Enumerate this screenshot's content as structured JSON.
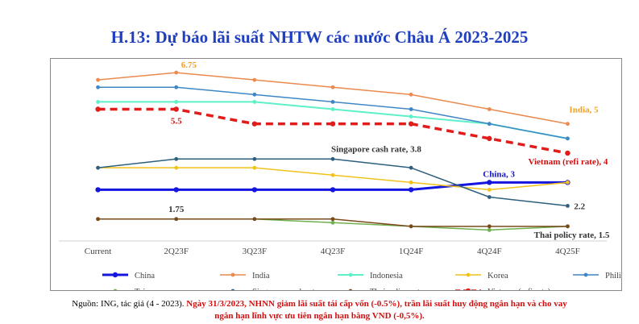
{
  "title": "H.13: Dự báo lãi suất NHTW các nước Châu Á 2023-2025",
  "source": {
    "prefix": "Nguồn: ING, tác giả (4 - 2023). ",
    "note_line1": "Ngày 31/3/2023, NHNN giảm lãi suất tái cấp vốn (-0.5%), trần lãi suất huy động ngắn hạn và cho vay",
    "note_line2": "ngắn hạn lĩnh vực ưu tiên ngắn hạn bằng VND (-0,5%)."
  },
  "chart_data": {
    "type": "line",
    "title": "H.13: Dự báo lãi suất NHTW các nước Châu Á 2023-2025",
    "categories": [
      "Current",
      "2Q23F",
      "3Q23F",
      "4Q23F",
      "1Q24F",
      "4Q24F",
      "4Q25F"
    ],
    "ylim": [
      1,
      7
    ],
    "yticks": [
      "1",
      "2",
      "3",
      "4",
      "5",
      "6",
      "7"
    ],
    "grid": false,
    "legend": "bottom",
    "series": [
      {
        "name": "China",
        "color": "#1515e0",
        "dash": false,
        "width": 3,
        "marker": "circle",
        "values": [
          2.75,
          2.75,
          2.75,
          2.75,
          2.75,
          3.0,
          3.0
        ]
      },
      {
        "name": "India",
        "color": "#ea8a4e",
        "dash": false,
        "width": 1.5,
        "marker": "circle",
        "values": [
          6.5,
          6.75,
          6.5,
          6.25,
          6.0,
          5.5,
          5.0
        ]
      },
      {
        "name": "Indonesia",
        "color": "#5ef0c8",
        "dash": false,
        "width": 2,
        "marker": "circle",
        "values": [
          5.75,
          5.75,
          5.75,
          5.5,
          5.25,
          5.0,
          4.5
        ]
      },
      {
        "name": "Korea",
        "color": "#f2c21a",
        "dash": false,
        "width": 1.5,
        "marker": "circle",
        "values": [
          3.5,
          3.5,
          3.5,
          3.25,
          3.0,
          2.75,
          3.0
        ]
      },
      {
        "name": "Philippines",
        "color": "#3f86c6",
        "dash": false,
        "width": 1.5,
        "marker": "circle",
        "values": [
          6.25,
          6.25,
          6.0,
          5.75,
          5.5,
          5.0,
          4.5
        ]
      },
      {
        "name": "Taiwan",
        "color": "#6fb04f",
        "dash": false,
        "width": 1.5,
        "marker": "circle",
        "values": [
          1.75,
          1.75,
          1.75,
          1.625,
          1.5,
          1.375,
          1.5
        ]
      },
      {
        "name": "Singapore cash rate",
        "color": "#2d5f7f",
        "dash": false,
        "width": 1.5,
        "marker": "circle",
        "values": [
          3.5,
          3.8,
          3.8,
          3.8,
          3.5,
          2.5,
          2.2
        ]
      },
      {
        "name": "Thai policy rate",
        "color": "#7a4a1a",
        "dash": false,
        "width": 1.5,
        "marker": "circle",
        "values": [
          1.75,
          1.75,
          1.75,
          1.75,
          1.5,
          1.5,
          1.5
        ]
      },
      {
        "name": "Vietnam (refi rate)",
        "color": "#e21b1b",
        "dash": true,
        "width": 3.5,
        "marker": "circle",
        "values": [
          5.5,
          5.5,
          5.0,
          5.0,
          5.0,
          4.5,
          4.0
        ]
      }
    ],
    "annotations": [
      {
        "text": "6.75",
        "series": "India",
        "index": 1,
        "color": "#f0a020"
      },
      {
        "text": "India, 5",
        "series": "India",
        "index": 6,
        "color": "#f0a020"
      },
      {
        "text": "5.5",
        "series": "Vietnam (refi rate)",
        "index": 1,
        "color": "#d01010"
      },
      {
        "text": "Vietnam (refi rate), 4",
        "series": "Vietnam (refi rate)",
        "index": 6,
        "color": "#d01010"
      },
      {
        "text": "Singapore cash rate, 3.8",
        "series": "Singapore cash rate",
        "index": 3,
        "color": "#333333"
      },
      {
        "text": "China, 3",
        "series": "China",
        "index": 5,
        "color": "#1515c0"
      },
      {
        "text": "2.2",
        "series": "Singapore cash rate",
        "index": 6,
        "color": "#333333"
      },
      {
        "text": "1.75",
        "series": "Taiwan",
        "index": 1,
        "color": "#333333"
      },
      {
        "text": "Thai policy rate, 1.5",
        "series": "Thai policy rate",
        "index": 6,
        "color": "#333333"
      }
    ]
  }
}
